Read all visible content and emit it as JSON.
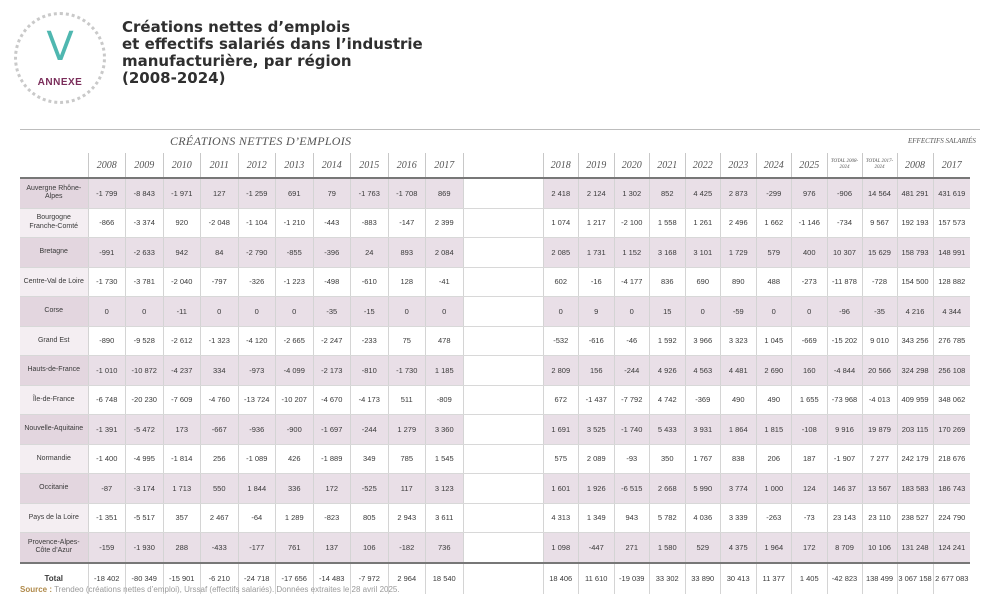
{
  "badge": {
    "letter": "V",
    "label": "ANNEXE"
  },
  "title": {
    "lines": [
      "Créations nettes d’emplois",
      "et effectifs salariés dans l’industrie",
      "manufacturière, par région",
      "(2008-2024)"
    ]
  },
  "table": {
    "group_main": "CRÉATIONS NETTES D’EMPLOIS",
    "group_effectifs": "EFFECTIFS SALARIÉS",
    "years_left": [
      "2008",
      "2009",
      "2010",
      "2011",
      "2012",
      "2013",
      "2014",
      "2015",
      "2016",
      "2017"
    ],
    "years_right": [
      "2018",
      "2019",
      "2020",
      "2021",
      "2022",
      "2023",
      "2024",
      "2025"
    ],
    "total_headers": [
      "TOTAL 2008-2024",
      "TOTAL 2017-2024"
    ],
    "effectifs_headers": [
      "2008",
      "2017"
    ],
    "rows": [
      {
        "region": "Auvergne Rhône-Alpes",
        "left": [
          "-1 799",
          "-8 843",
          "-1 971",
          "127",
          "-1 259",
          "691",
          "79",
          "-1 763",
          "-1 708",
          "869"
        ],
        "right": [
          "2 418",
          "2 124",
          "1 302",
          "852",
          "4 425",
          "2 873",
          "-299",
          "976"
        ],
        "totals": [
          "-906",
          "14 564"
        ],
        "eff": [
          "481 291",
          "431 619"
        ]
      },
      {
        "region": "Bourgogne Franche-Comté",
        "left": [
          "-866",
          "-3 374",
          "920",
          "-2 048",
          "-1 104",
          "-1 210",
          "-443",
          "-883",
          "-147",
          "2 399"
        ],
        "right": [
          "1 074",
          "1 217",
          "-2 100",
          "1 558",
          "1 261",
          "2 496",
          "1 662",
          "-1 146"
        ],
        "totals": [
          "-734",
          "9 567"
        ],
        "eff": [
          "192 193",
          "157 573"
        ]
      },
      {
        "region": "Bretagne",
        "left": [
          "-991",
          "-2 633",
          "942",
          "84",
          "-2 790",
          "-855",
          "-396",
          "24",
          "893",
          "2 084"
        ],
        "right": [
          "2 085",
          "1 731",
          "1 152",
          "3 168",
          "3 101",
          "1 729",
          "579",
          "400"
        ],
        "totals": [
          "10 307",
          "15 629"
        ],
        "eff": [
          "158 793",
          "148 991"
        ]
      },
      {
        "region": "Centre-Val de Loire",
        "left": [
          "-1 730",
          "-3 781",
          "-2 040",
          "-797",
          "-326",
          "-1 223",
          "-498",
          "-610",
          "128",
          "-41"
        ],
        "right": [
          "602",
          "-16",
          "-4 177",
          "836",
          "690",
          "890",
          "488",
          "-273"
        ],
        "totals": [
          "-11 878",
          "-728"
        ],
        "eff": [
          "154 500",
          "128 882"
        ]
      },
      {
        "region": "Corse",
        "left": [
          "0",
          "0",
          "-11",
          "0",
          "0",
          "0",
          "-35",
          "-15",
          "0",
          "0"
        ],
        "right": [
          "0",
          "9",
          "0",
          "15",
          "0",
          "-59",
          "0",
          "0"
        ],
        "totals": [
          "-96",
          "-35"
        ],
        "eff": [
          "4 216",
          "4 344"
        ]
      },
      {
        "region": "Grand Est",
        "left": [
          "-890",
          "-9 528",
          "-2 612",
          "-1 323",
          "-4 120",
          "-2 665",
          "-2 247",
          "-233",
          "75",
          "478"
        ],
        "right": [
          "-532",
          "-616",
          "-46",
          "1 592",
          "3 966",
          "3 323",
          "1 045",
          "-669"
        ],
        "totals": [
          "-15 202",
          "9 010"
        ],
        "eff": [
          "343 256",
          "276 785"
        ]
      },
      {
        "region": "Hauts-de-France",
        "left": [
          "-1 010",
          "-10 872",
          "-4 237",
          "334",
          "-973",
          "-4 099",
          "-2 173",
          "-810",
          "-1 730",
          "1 185"
        ],
        "right": [
          "2 809",
          "156",
          "-244",
          "4 926",
          "4 563",
          "4 481",
          "2 690",
          "160"
        ],
        "totals": [
          "-4 844",
          "20 566"
        ],
        "eff": [
          "324 298",
          "256 108"
        ]
      },
      {
        "region": "Île-de-France",
        "left": [
          "-6 748",
          "-20 230",
          "-7 609",
          "-4 760",
          "-13 724",
          "-10 207",
          "-4 670",
          "-4 173",
          "511",
          "-809"
        ],
        "right": [
          "672",
          "-1 437",
          "-7 792",
          "4 742",
          "-369",
          "490",
          "490",
          "1 655"
        ],
        "totals": [
          "-73 968",
          "-4 013"
        ],
        "eff": [
          "409 959",
          "348 062"
        ]
      },
      {
        "region": "Nouvelle-Aquitaine",
        "left": [
          "-1 391",
          "-5 472",
          "173",
          "-667",
          "-936",
          "-900",
          "-1 697",
          "-244",
          "1 279",
          "3 360"
        ],
        "right": [
          "1 691",
          "3 525",
          "-1 740",
          "5 433",
          "3 931",
          "1 864",
          "1 815",
          "-108"
        ],
        "totals": [
          "9 916",
          "19 879"
        ],
        "eff": [
          "203 115",
          "170 269"
        ]
      },
      {
        "region": "Normandie",
        "left": [
          "-1 400",
          "-4 995",
          "-1 814",
          "256",
          "-1 089",
          "426",
          "-1 889",
          "349",
          "785",
          "1 545"
        ],
        "right": [
          "575",
          "2 089",
          "-93",
          "350",
          "1 767",
          "838",
          "206",
          "187"
        ],
        "totals": [
          "-1 907",
          "7 277"
        ],
        "eff": [
          "242 179",
          "218 676"
        ]
      },
      {
        "region": "Occitanie",
        "left": [
          "-87",
          "-3 174",
          "1 713",
          "550",
          "1 844",
          "336",
          "172",
          "-525",
          "117",
          "3 123"
        ],
        "right": [
          "1 601",
          "1 926",
          "-6 515",
          "2 668",
          "5 990",
          "3 774",
          "1 000",
          "124"
        ],
        "totals": [
          "146 37",
          "13 567"
        ],
        "eff": [
          "183 583",
          "186 743"
        ]
      },
      {
        "region": "Pays de la Loire",
        "left": [
          "-1 351",
          "-5 517",
          "357",
          "2 467",
          "-64",
          "1 289",
          "-823",
          "805",
          "2 943",
          "3 611"
        ],
        "right": [
          "4 313",
          "1 349",
          "943",
          "5 782",
          "4 036",
          "3 339",
          "-263",
          "-73"
        ],
        "totals": [
          "23 143",
          "23 110"
        ],
        "eff": [
          "238 527",
          "224 790"
        ]
      },
      {
        "region": "Provence-Alpes-Côte d’Azur",
        "left": [
          "-159",
          "-1 930",
          "288",
          "-433",
          "-177",
          "761",
          "137",
          "106",
          "-182",
          "736"
        ],
        "right": [
          "1 098",
          "-447",
          "271",
          "1 580",
          "529",
          "4 375",
          "1 964",
          "172"
        ],
        "totals": [
          "8 709",
          "10 106"
        ],
        "eff": [
          "131 248",
          "124 241"
        ]
      }
    ],
    "total": {
      "label": "Total",
      "left": [
        "-18 402",
        "-80 349",
        "-15 901",
        "-6 210",
        "-24 718",
        "-17 656",
        "-14 483",
        "-7 972",
        "2 964",
        "18 540"
      ],
      "right": [
        "18 406",
        "11 610",
        "-19 039",
        "33 302",
        "33 890",
        "30 413",
        "11 377",
        "1 405"
      ],
      "totals": [
        "-42 823",
        "138 499"
      ],
      "eff": [
        "3 067 158",
        "2 677 083"
      ]
    }
  },
  "source": {
    "label": "Source :",
    "text": "Trendeo (créations nettes d’emploi), Urssaf (effectifs salariés). Données extraites le 28 avril 2025."
  }
}
